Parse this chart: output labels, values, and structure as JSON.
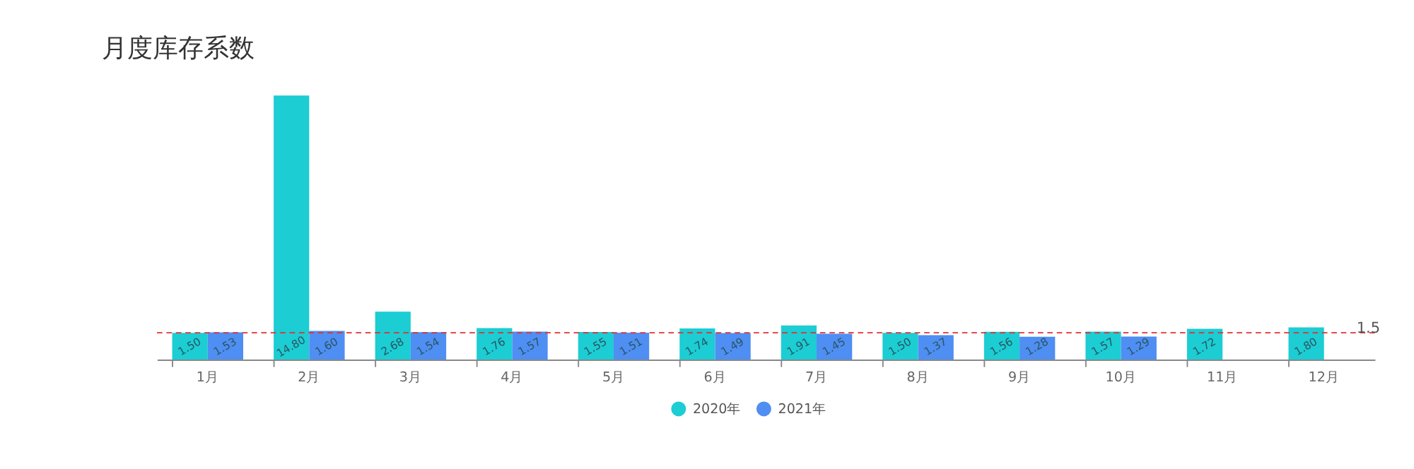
{
  "chart_data": {
    "type": "bar",
    "title": "月度库存系数",
    "categories": [
      "1月",
      "2月",
      "3月",
      "4月",
      "5月",
      "6月",
      "7月",
      "8月",
      "9月",
      "10月",
      "11月",
      "12月"
    ],
    "series": [
      {
        "name": "2020年",
        "color": "#1ccdd3",
        "values": [
          1.5,
          14.8,
          2.68,
          1.76,
          1.55,
          1.74,
          1.91,
          1.5,
          1.56,
          1.57,
          1.72,
          1.8
        ],
        "value_labels": [
          "1.50",
          "14.80",
          "2.68",
          "1.76",
          "1.55",
          "1.74",
          "1.91",
          "1.50",
          "1.56",
          "1.57",
          "1.72",
          "1.80"
        ]
      },
      {
        "name": "2021年",
        "color": "#4f8ef2",
        "values": [
          1.53,
          1.6,
          1.54,
          1.57,
          1.51,
          1.49,
          1.45,
          1.37,
          1.28,
          1.29,
          null,
          null
        ],
        "value_labels": [
          "1.53",
          "1.60",
          "1.54",
          "1.57",
          "1.51",
          "1.49",
          "1.45",
          "1.37",
          "1.28",
          "1.29",
          null,
          null
        ]
      }
    ],
    "ylim": [
      0,
      15
    ],
    "tick_labels": "x",
    "legend": "bottom",
    "ref_lines": [
      {
        "axis": "y",
        "value": 1.5,
        "label": "1.5",
        "color": "#e03030",
        "line_style": "dashed"
      }
    ]
  }
}
